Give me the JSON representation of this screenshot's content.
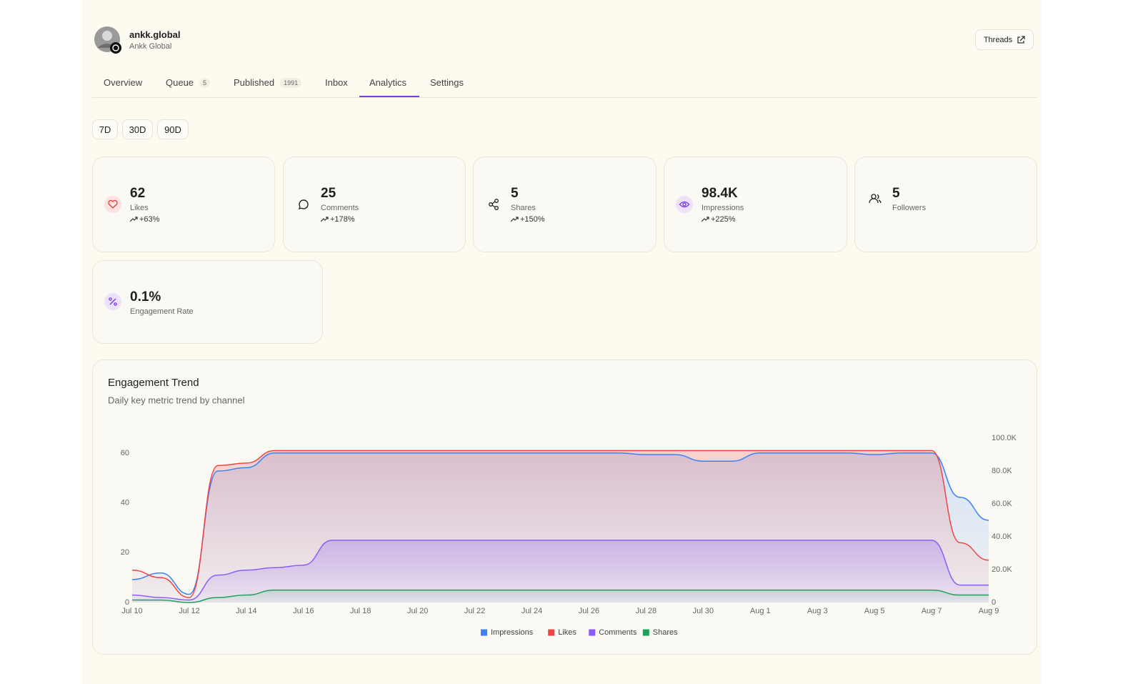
{
  "profile": {
    "name": "ankk.global",
    "subtitle": "Ankk Global"
  },
  "external_link": "Threads",
  "tabs": [
    {
      "label": "Overview"
    },
    {
      "label": "Queue",
      "badge": 5
    },
    {
      "label": "Published",
      "badge": 1991
    },
    {
      "label": "Inbox"
    },
    {
      "label": "Analytics",
      "active": true
    },
    {
      "label": "Settings"
    }
  ],
  "ranges": [
    {
      "label": "7D"
    },
    {
      "label": "30D",
      "active": true
    },
    {
      "label": "90D"
    }
  ],
  "metrics": [
    {
      "value": "62",
      "label": "Likes",
      "change": "+63%"
    },
    {
      "value": "25",
      "label": "Comments",
      "change": "+178%"
    },
    {
      "value": "5",
      "label": "Shares",
      "change": "+150%"
    },
    {
      "value": "98.4K",
      "label": "Impressions",
      "change": "+225%"
    },
    {
      "value": "5",
      "label": "Followers"
    },
    {
      "value": "0.1%",
      "label": "Engagement Rate"
    }
  ],
  "chart_data": {
    "type": "area",
    "title": "Engagement Trend",
    "subtitle": "Daily key metric trend by channel",
    "categories": [
      "Jul 10",
      null,
      "Jul 12",
      null,
      "Jul 14",
      null,
      "Jul 16",
      null,
      "Jul 18",
      null,
      "Jul 20",
      null,
      "Jul 22",
      null,
      "Jul 24",
      null,
      "Jul 26",
      null,
      "Jul 28",
      null,
      "Jul 30",
      null,
      "Aug 1",
      null,
      "Aug 3",
      null,
      "Aug 5",
      null,
      "Aug 7",
      null,
      "Aug 9"
    ],
    "ylim": [
      0,
      66
    ],
    "yticks": [
      0,
      20,
      40,
      60
    ],
    "y2lim": [
      0,
      100000
    ],
    "y2ticks": [
      0,
      {
        "value": 20000,
        "label": "20.0K"
      },
      {
        "value": 40000,
        "label": "40.0K"
      },
      {
        "value": 60000,
        "label": "60.0K"
      },
      {
        "value": 80000,
        "label": "80.0K"
      },
      {
        "value": 100000,
        "label": "100.0K"
      }
    ],
    "grid": false,
    "legend": "bottom",
    "series": [
      {
        "name": "Impressions",
        "color": "#3b82f6",
        "axis": "y2",
        "values": [
          14000,
          18000,
          5000,
          80000,
          82000,
          91000,
          91000,
          91000,
          91000,
          91000,
          91000,
          91000,
          91000,
          91000,
          91000,
          91000,
          91000,
          91000,
          90000,
          90000,
          86000,
          86000,
          91000,
          91000,
          91000,
          91000,
          90000,
          91000,
          91000,
          64000,
          50000
        ]
      },
      {
        "name": "Likes",
        "color": "#ef4444",
        "values": [
          13,
          10,
          2,
          55,
          56,
          61,
          61,
          61,
          61,
          61,
          61,
          61,
          61,
          61,
          61,
          61,
          61,
          61,
          61,
          61,
          61,
          61,
          61,
          61,
          61,
          61,
          61,
          61,
          61,
          24,
          17
        ]
      },
      {
        "name": "Comments",
        "color": "#8b5cf6",
        "values": [
          3,
          2,
          1,
          11,
          13,
          14,
          15,
          25,
          25,
          25,
          25,
          25,
          25,
          25,
          25,
          25,
          25,
          25,
          25,
          25,
          25,
          25,
          25,
          25,
          25,
          25,
          25,
          25,
          25,
          7,
          7
        ]
      },
      {
        "name": "Shares",
        "color": "#22a05a",
        "values": [
          1,
          1,
          0,
          2,
          3,
          5,
          5,
          5,
          5,
          5,
          5,
          5,
          5,
          5,
          5,
          5,
          5,
          5,
          5,
          5,
          5,
          5,
          5,
          5,
          5,
          5,
          5,
          5,
          5,
          3,
          3
        ]
      }
    ]
  }
}
